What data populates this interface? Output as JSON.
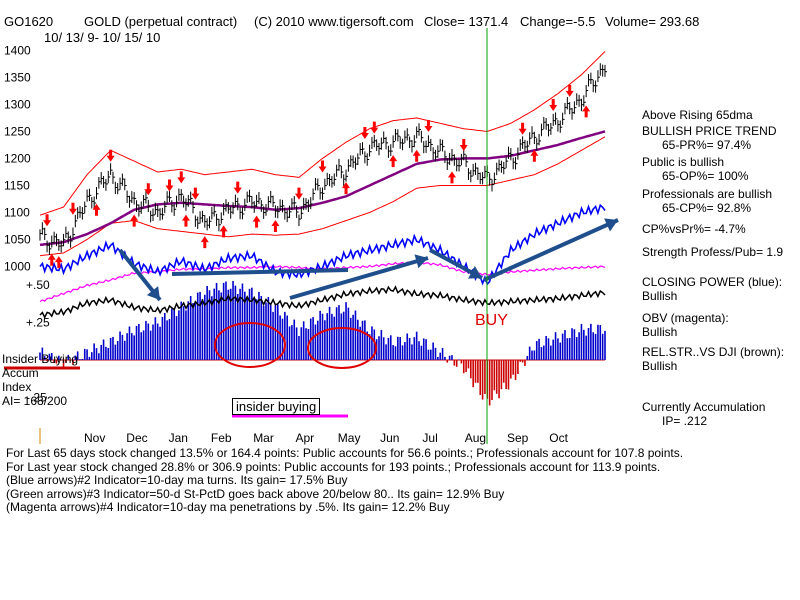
{
  "header": {
    "symbol": "GO1620",
    "name": "GOLD (perpetual contract)",
    "copyright": "(C) 2010 www.tigersoft.com",
    "close": "Close=  1371.4",
    "change": "Change=-5.5",
    "volume": "Volume=  293.68",
    "date_range": "10/ 13/ 9- 10/ 15/ 10"
  },
  "right_panel": {
    "above_ma": "Above Rising 65dma",
    "trend": "BULLISH PRICE TREND",
    "pr": "65-PR%= 97.4%",
    "public": "Public is bullish",
    "op": "65-OP%= 100%",
    "professionals": "Professionals are bullish",
    "cp": "65-CP%= 92.8%",
    "cpvspr": "CP%vsPr%= -4.7%",
    "strength": "Strength Profess/Pub= 1.9",
    "closing_power_label": "CLOSING POWER (blue):",
    "closing_power_value": "Bullish",
    "obv_label": "OBV (magenta):",
    "obv_value": "Bullish",
    "relstr_label": "REL.STR..VS DJI (brown):",
    "relstr_value": "Bullish",
    "accum_label": "Currently Accumulation",
    "accum_value": "IP=  .212"
  },
  "left_panel": {
    "insider_buying": "Insider Buying",
    "accum": "Accum",
    "index": "Index",
    "ai": "AI= 168/200"
  },
  "annotations": {
    "buy": "BUY",
    "insider_buying_box": "insider buying"
  },
  "notes": [
    "For Last 65 days stock changed  13.5% or  164.4 points:  Public accounts for  56.6 points.;  Professionals account for  107.8 points.",
    "For Last year stock changed  28.8% or  306.9 points:  Public accounts for  193 points.;  Professionals account for  113.9 points.",
    "(Blue arrows)#2 Indicator=10-day ma turns.  Its gain= 17.5% Buy",
    "(Green arrows)#3 Indicator=50-d St-PctD goes back above 20/below 80..  Its gain= 12.9% Buy",
    "(Magenta arrows)#4 Indicator=10-day ma penetrations by .5%.  Its gain= 12.2% Buy"
  ],
  "colors": {
    "price_bars": "#000000",
    "bands": "#ff0000",
    "ma65": "#800080",
    "closing_power": "#0000ff",
    "obv": "#ff00ff",
    "rel_strength": "#000000",
    "accum_positive": "#0000cc",
    "accum_negative": "#cc0000",
    "trendline": "#1f4e8c",
    "buy_line": "#00a000",
    "zero_line": "#cc0000",
    "highlight_bar": "#ff00ff"
  },
  "chart_data": {
    "type": "line",
    "title": "GOLD (perpetual contract)",
    "xlabel": "",
    "ylabel": "",
    "x_ticks": [
      "Nov",
      "Dec",
      "Jan",
      "Feb",
      "Mar",
      "Apr",
      "May",
      "Jun",
      "Jul",
      "Aug",
      "Sep",
      "Oct"
    ],
    "ylim": [
      975,
      1410
    ],
    "y_ticks": [
      "1400",
      "1350",
      "1300",
      "1250",
      "1200",
      "1150",
      "1100",
      "1050",
      "1000"
    ],
    "accum_ticks": [
      "+.50",
      "+.25",
      "-.25"
    ],
    "x": [
      "Oct 15 09",
      "Nov 1",
      "Nov 15",
      "Dec 1",
      "Dec 15",
      "Jan 1",
      "Jan 15",
      "Feb 1",
      "Feb 15",
      "Mar 1",
      "Mar 15",
      "Apr 1",
      "Apr 15",
      "May 1",
      "May 15",
      "Jun 1",
      "Jun 15",
      "Jul 1",
      "Jul 15",
      "Aug 1",
      "Aug 15",
      "Sep 1",
      "Sep 15",
      "Oct 1",
      "Oct 15 10"
    ],
    "series": [
      {
        "name": "Close",
        "values": [
          1055,
          1040,
          1120,
          1170,
          1120,
          1100,
          1130,
          1080,
          1105,
          1120,
          1110,
          1100,
          1150,
          1180,
          1220,
          1230,
          1240,
          1210,
          1190,
          1160,
          1200,
          1240,
          1270,
          1310,
          1371
        ]
      },
      {
        "name": "65-day MA",
        "values": [
          1040,
          1045,
          1060,
          1080,
          1105,
          1115,
          1118,
          1115,
          1112,
          1110,
          1105,
          1108,
          1118,
          1130,
          1150,
          1170,
          1190,
          1198,
          1200,
          1200,
          1205,
          1215,
          1225,
          1238,
          1250
        ]
      },
      {
        "name": "Upper band",
        "values": [
          1095,
          1110,
          1170,
          1215,
          1195,
          1175,
          1180,
          1170,
          1175,
          1180,
          1170,
          1165,
          1200,
          1230,
          1255,
          1270,
          1275,
          1265,
          1255,
          1250,
          1265,
          1290,
          1320,
          1355,
          1398
        ]
      },
      {
        "name": "Lower band",
        "values": [
          1020,
          1025,
          1050,
          1080,
          1085,
          1070,
          1065,
          1060,
          1055,
          1060,
          1058,
          1060,
          1070,
          1085,
          1100,
          1120,
          1145,
          1150,
          1150,
          1150,
          1160,
          1170,
          1190,
          1215,
          1240
        ]
      },
      {
        "name": "CLOSING POWER (blue)",
        "values": [
          1000,
          995,
          1020,
          1040,
          1005,
          990,
          1010,
          995,
          1015,
          1020,
          990,
          985,
          1000,
          1020,
          1030,
          1040,
          1050,
          1030,
          1000,
          970,
          1030,
          1060,
          1080,
          1100,
          1110
        ]
      },
      {
        "name": "OBV (magenta)",
        "values": [
          935,
          950,
          965,
          975,
          988,
          990,
          995,
          995,
          998,
          998,
          1000,
          998,
          995,
          998,
          1000,
          1005,
          1008,
          1003,
          990,
          985,
          990,
          993,
          996,
          998,
          1000
        ]
      },
      {
        "name": "Accumulation Index",
        "values": [
          0.05,
          -0.02,
          0.05,
          0.12,
          0.2,
          0.25,
          0.35,
          0.45,
          0.5,
          0.45,
          0.35,
          0.2,
          0.3,
          0.35,
          0.2,
          0.12,
          0.15,
          0.05,
          -0.05,
          -0.28,
          -0.15,
          0.1,
          0.15,
          0.2,
          0.21
        ]
      },
      {
        "name": "REL.STR..VS DJI (brown)",
        "values": [
          0.3,
          0.32,
          0.38,
          0.4,
          0.35,
          0.33,
          0.36,
          0.38,
          0.41,
          0.4,
          0.38,
          0.36,
          0.4,
          0.44,
          0.46,
          0.47,
          0.44,
          0.43,
          0.4,
          0.38,
          0.39,
          0.4,
          0.41,
          0.43,
          0.45
        ]
      }
    ]
  }
}
